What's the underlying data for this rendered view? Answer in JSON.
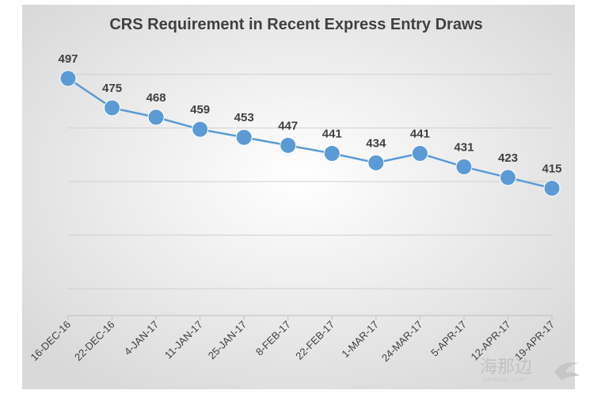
{
  "chart_data": {
    "type": "line",
    "title": "CRS Requirement in Recent Express Entry Draws",
    "xlabel": "",
    "ylabel": "",
    "categories": [
      "16-DEC-16",
      "22-DEC-16",
      "4-JAN-17",
      "11-JAN-17",
      "25-JAN-17",
      "8-FEB-17",
      "22-FEB-17",
      "1-MAR-17",
      "24-MAR-17",
      "5-APR-17",
      "12-APR-17",
      "19-APR-17"
    ],
    "series": [
      {
        "name": "CRS Requirement",
        "values": [
          497,
          475,
          468,
          459,
          453,
          447,
          441,
          434,
          441,
          431,
          423,
          415
        ]
      }
    ],
    "ylim": [
      320,
      520
    ],
    "grid": true,
    "y_axis_labels_shown": false,
    "colors": {
      "line": "#5b9bd5",
      "marker": "#5b9bd5",
      "gridline": "#d0d0d0",
      "text": "#404040"
    }
  },
  "watermark": {
    "text": "海那边",
    "subtext": "hinabian.com"
  }
}
